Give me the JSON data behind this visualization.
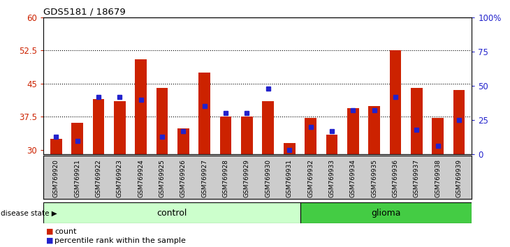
{
  "title": "GDS5181 / 18679",
  "samples": [
    "GSM769920",
    "GSM769921",
    "GSM769922",
    "GSM769923",
    "GSM769924",
    "GSM769925",
    "GSM769926",
    "GSM769927",
    "GSM769928",
    "GSM769929",
    "GSM769930",
    "GSM769931",
    "GSM769932",
    "GSM769933",
    "GSM769934",
    "GSM769935",
    "GSM769936",
    "GSM769937",
    "GSM769938",
    "GSM769939"
  ],
  "bar_heights": [
    32.5,
    36.2,
    41.5,
    41.0,
    50.5,
    44.0,
    34.8,
    47.5,
    37.5,
    37.5,
    41.0,
    31.5,
    37.2,
    33.5,
    39.5,
    40.0,
    52.5,
    44.0,
    37.3,
    43.5
  ],
  "blue_dot_pct": [
    13,
    10,
    42,
    42,
    40,
    13,
    17,
    35,
    30,
    30,
    48,
    3,
    20,
    17,
    32,
    32,
    42,
    18,
    6,
    25
  ],
  "control_count": 12,
  "glioma_count": 8,
  "y_min": 29.0,
  "y_max": 60.0,
  "y_left_ticks": [
    30,
    37.5,
    45,
    52.5,
    60
  ],
  "y_right_ticks": [
    0,
    25,
    50,
    75,
    100
  ],
  "y_right_labels": [
    "0",
    "25",
    "50",
    "75",
    "100%"
  ],
  "bar_color": "#cc2200",
  "dot_color": "#2222cc",
  "control_bg": "#ccffcc",
  "glioma_bg": "#44cc44",
  "label_area_bg": "#cccccc",
  "border_color": "#000000",
  "grid_color": "#000000",
  "left_axis_color": "#cc2200",
  "right_axis_color": "#2222cc",
  "legend_count_label": "count",
  "legend_percentile_label": "percentile rank within the sample",
  "disease_state_label": "disease state",
  "control_label": "control",
  "glioma_label": "glioma"
}
